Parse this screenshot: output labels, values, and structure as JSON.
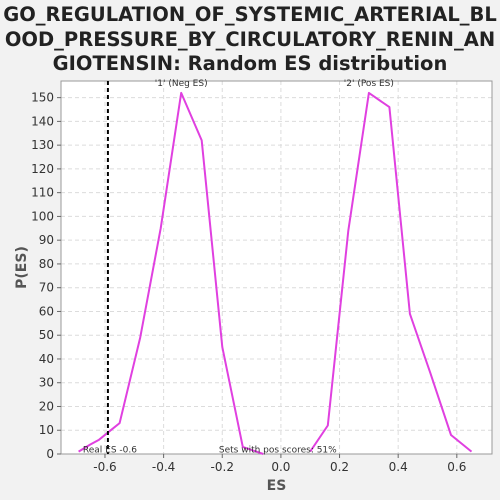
{
  "chart_data": {
    "type": "line",
    "title_lines": [
      "GO_REGULATION_OF_SYSTEMIC_ARTERIAL_BL",
      "OOD_PRESSURE_BY_CIRCULATORY_RENIN_AN",
      "GIOTENSIN: Random ES distribution"
    ],
    "xlabel": "ES",
    "ylabel": "P(ES)",
    "xlim": [
      -0.75,
      0.72
    ],
    "ylim": [
      0,
      157
    ],
    "xticks": [
      -0.6,
      -0.4,
      -0.2,
      0.0,
      0.2,
      0.4,
      0.6
    ],
    "xtick_labels": [
      "-0.6",
      "-0.4",
      "-0.2",
      "0.0",
      "0.2",
      "0.4",
      "0.6"
    ],
    "yticks": [
      0,
      10,
      20,
      30,
      40,
      50,
      60,
      70,
      80,
      90,
      100,
      110,
      120,
      130,
      140,
      150
    ],
    "grid": true,
    "line_color": "#e040e0",
    "series": [
      {
        "name": "'1' (Neg ES)",
        "label_color": "#2222cc",
        "label_x": -0.34,
        "label_y": 155,
        "x": [
          -0.69,
          -0.65,
          -0.62,
          -0.58,
          -0.55,
          -0.48,
          -0.41,
          -0.34,
          -0.27,
          -0.2,
          -0.13,
          -0.06
        ],
        "y": [
          1,
          4,
          6,
          10,
          13,
          49,
          95,
          152,
          132,
          45,
          3,
          0
        ]
      },
      {
        "name": "'2' (Pos ES)",
        "label_color": "#dd2222",
        "label_x": 0.3,
        "label_y": 155,
        "x": [
          0.1,
          0.16,
          0.23,
          0.3,
          0.37,
          0.44,
          0.51,
          0.58,
          0.65
        ],
        "y": [
          1,
          12,
          94,
          152,
          146,
          59,
          34,
          8,
          1
        ]
      }
    ],
    "real_es": {
      "value": -0.59,
      "label": "Real ES -0.6"
    },
    "annotation": "Sets with pos scores: 51%"
  }
}
